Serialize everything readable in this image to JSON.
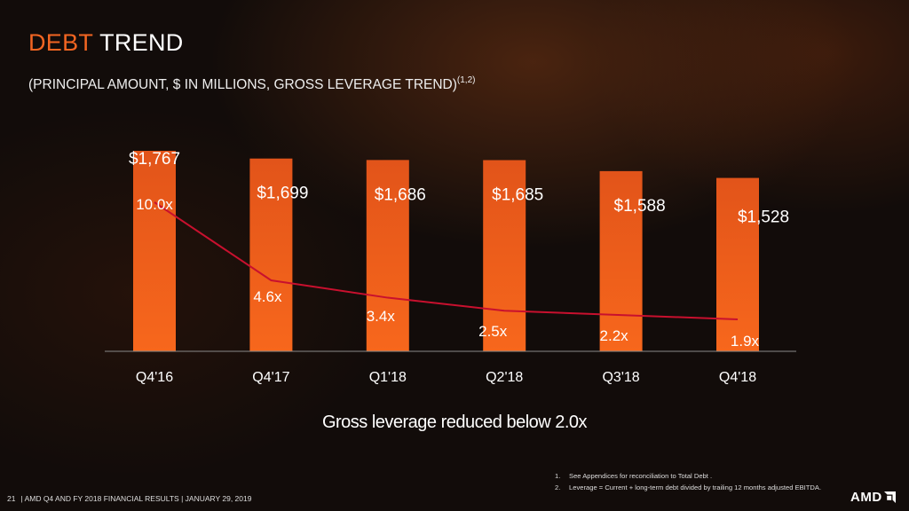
{
  "header": {
    "title_accent": "DEBT",
    "title_rest": "TREND",
    "subtitle": "(PRINCIPAL AMOUNT, $ IN MILLIONS, GROSS LEVERAGE TREND)",
    "subtitle_sup": "(1,2)"
  },
  "chart_data": {
    "type": "bar",
    "categories": [
      "Q4'16",
      "Q4'17",
      "Q1'18",
      "Q2'18",
      "Q3'18",
      "Q4'18"
    ],
    "series": [
      {
        "name": "Principal Amount",
        "values": [
          1767,
          1699,
          1686,
          1685,
          1588,
          1528
        ],
        "labels": [
          "$1,767",
          "$1,699",
          "$1,686",
          "$1,685",
          "$1,588",
          "$1,528"
        ]
      },
      {
        "name": "Gross Leverage",
        "type": "line",
        "values": [
          10.0,
          4.6,
          3.4,
          2.5,
          2.2,
          1.9
        ],
        "labels": [
          "10.0x",
          "4.6x",
          "3.4x",
          "2.5x",
          "2.2x",
          "1.9x"
        ]
      }
    ],
    "bar_ylim": [
      0,
      1767
    ],
    "line_ylim": [
      0,
      10.0
    ],
    "grid": false,
    "bar_color": "#f26522",
    "line_color": "#c8102e"
  },
  "callout": "Gross leverage reduced below 2.0x",
  "footnotes": [
    {
      "num": "1.",
      "text": "See  Appendices for  reconciliation to Total Debt ."
    },
    {
      "num": "2.",
      "text": "Leverage  = Current + long-term debt divided by trailing 12 months adjusted EBITDA."
    }
  ],
  "footer": {
    "page": "21",
    "text": "|  AMD Q4 AND FY 2018 FINANCIAL RESULTS |  JANUARY 29, 2019"
  },
  "logo": {
    "text": "AMD",
    "icon": "amd-arrow-icon"
  },
  "colors": {
    "accent": "#f26522",
    "line": "#c8102e"
  }
}
